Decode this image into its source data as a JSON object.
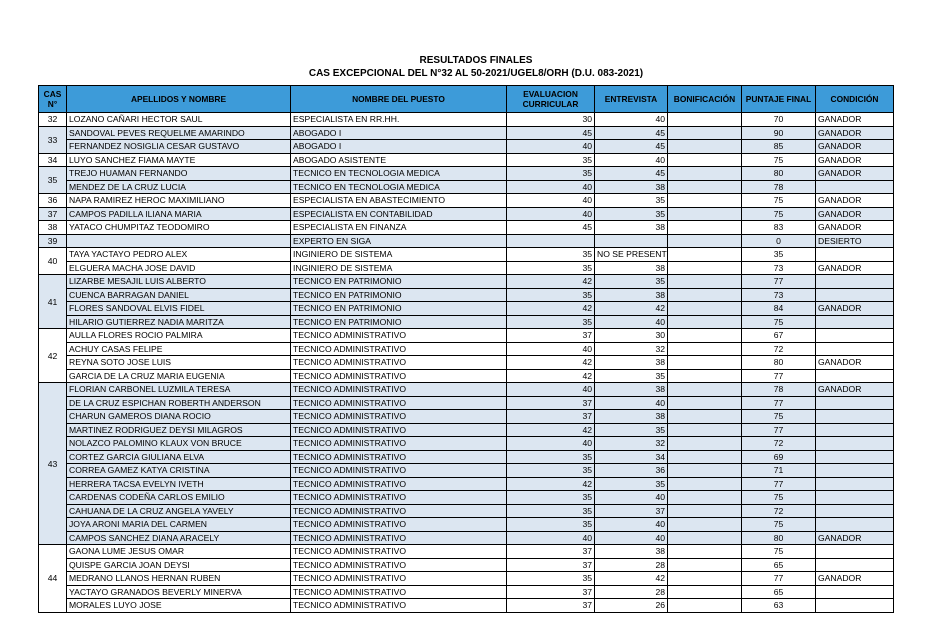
{
  "header": {
    "title": "RESULTADOS FINALES",
    "subtitle": "CAS EXCEPCIONAL DEL N°32 AL 50-2021/UGEL8/ORH (D.U. 083-2021)"
  },
  "table": {
    "columns": [
      "CAS N°",
      "APELLIDOS Y NOMBRE",
      "NOMBRE DEL PUESTO",
      "EVALUACION CURRICULAR",
      "ENTREVISTA",
      "BONIFICACIÓN",
      "PUNTAJE FINAL",
      "CONDICIÓN"
    ],
    "groups": [
      {
        "cas": 32,
        "rows": [
          [
            "LOZANO CAÑARI HECTOR SAUL",
            "ESPECIALISTA EN RR.HH.",
            30,
            40,
            null,
            70,
            "GANADOR"
          ]
        ]
      },
      {
        "cas": 33,
        "rows": [
          [
            "SANDOVAL PEVES REQUELME AMARINDO",
            "ABOGADO I",
            45,
            45,
            null,
            90,
            "GANADOR"
          ],
          [
            "FERNANDEZ NOSIGLIA CESAR GUSTAVO",
            "ABOGADO I",
            40,
            45,
            null,
            85,
            "GANADOR"
          ]
        ]
      },
      {
        "cas": 34,
        "rows": [
          [
            "LUYO SANCHEZ FIAMA MAYTE",
            "ABOGADO ASISTENTE",
            35,
            40,
            null,
            75,
            "GANADOR"
          ]
        ]
      },
      {
        "cas": 35,
        "rows": [
          [
            "TREJO HUAMAN FERNANDO",
            "TECNICO EN TECNOLOGIA MEDICA",
            35,
            45,
            null,
            80,
            "GANADOR"
          ],
          [
            "MENDEZ DE LA CRUZ LUCIA",
            "TECNICO EN TECNOLOGIA MEDICA",
            40,
            38,
            null,
            78,
            null
          ]
        ]
      },
      {
        "cas": 36,
        "rows": [
          [
            "NAPA RAMIREZ HEROC MAXIMILIANO",
            "ESPECIALISTA EN ABASTECIMIENTO",
            40,
            35,
            null,
            75,
            "GANADOR"
          ]
        ]
      },
      {
        "cas": 37,
        "rows": [
          [
            "CAMPOS PADILLA ILIANA MARIA",
            "ESPECIALISTA EN CONTABILIDAD",
            40,
            35,
            null,
            75,
            "GANADOR"
          ]
        ]
      },
      {
        "cas": 38,
        "rows": [
          [
            "YATACO CHUMPITAZ TEODOMIRO",
            "ESPECIALISTA EN FINANZA",
            45,
            38,
            null,
            83,
            "GANADOR"
          ]
        ]
      },
      {
        "cas": 39,
        "rows": [
          [
            null,
            "EXPERTO EN SIGA",
            null,
            null,
            null,
            0,
            "DESIERTO"
          ]
        ]
      },
      {
        "cas": 40,
        "rows": [
          [
            "TAYA YACTAYO PEDRO ALEX",
            "INGINIERO DE SISTEMA",
            35,
            "NO SE PRESENTO",
            null,
            35,
            null
          ],
          [
            "ELGUERA MACHA JOSE DAVID",
            "INGINIERO DE SISTEMA",
            35,
            38,
            null,
            73,
            "GANADOR"
          ]
        ]
      },
      {
        "cas": 41,
        "rows": [
          [
            "LIZARBE MESAJIL LUIS ALBERTO",
            "TECNICO EN PATRIMONIO",
            42,
            35,
            null,
            77,
            null
          ],
          [
            "CUENCA BARRAGAN DANIEL",
            "TECNICO EN PATRIMONIO",
            35,
            38,
            null,
            73,
            null
          ],
          [
            "FLORES SANDOVAL ELVIS FIDEL",
            "TECNICO EN PATRIMONIO",
            42,
            42,
            null,
            84,
            "GANADOR"
          ],
          [
            "HILARIO GUTIERREZ NADIA MARITZA",
            "TECNICO EN PATRIMONIO",
            35,
            40,
            null,
            75,
            null
          ]
        ]
      },
      {
        "cas": 42,
        "rows": [
          [
            "AULLA FLORES ROCIO PALMIRA",
            "TECNICO ADMINISTRATIVO",
            37,
            30,
            null,
            67,
            null
          ],
          [
            "ACHUY CASAS FELIPE",
            "TECNICO ADMINISTRATIVO",
            40,
            32,
            null,
            72,
            null
          ],
          [
            "REYNA SOTO JOSE LUIS",
            "TECNICO ADMINISTRATIVO",
            42,
            38,
            null,
            80,
            "GANADOR"
          ],
          [
            "GARCIA DE LA CRUZ MARIA EUGENIA",
            "TECNICO ADMINISTRATIVO",
            42,
            35,
            null,
            77,
            null
          ]
        ]
      },
      {
        "cas": 43,
        "rows": [
          [
            "FLORIAN CARBONEL LUZMILA TERESA",
            "TECNICO ADMINISTRATIVO",
            40,
            38,
            null,
            78,
            "GANADOR"
          ],
          [
            "DE LA CRUZ ESPICHAN ROBERTH ANDERSON",
            "TECNICO ADMINISTRATIVO",
            37,
            40,
            null,
            77,
            null
          ],
          [
            "CHARUN GAMEROS DIANA ROCIO",
            "TECNICO ADMINISTRATIVO",
            37,
            38,
            null,
            75,
            null
          ],
          [
            "MARTINEZ RODRIGUEZ DEYSI MILAGROS",
            "TECNICO ADMINISTRATIVO",
            42,
            35,
            null,
            77,
            null
          ],
          [
            "NOLAZCO PALOMINO KLAUX VON BRUCE",
            "TECNICO ADMINISTRATIVO",
            40,
            32,
            null,
            72,
            null
          ],
          [
            "CORTEZ GARCIA GIULIANA ELVA",
            "TECNICO ADMINISTRATIVO",
            35,
            34,
            null,
            69,
            null
          ],
          [
            "CORREA GAMEZ KATYA CRISTINA",
            "TECNICO ADMINISTRATIVO",
            35,
            36,
            null,
            71,
            null
          ],
          [
            "HERRERA TACSA EVELYN IVETH",
            "TECNICO ADMINISTRATIVO",
            42,
            35,
            null,
            77,
            null
          ],
          [
            "CARDENAS CODEÑA CARLOS EMILIO",
            "TECNICO ADMINISTRATIVO",
            35,
            40,
            null,
            75,
            null
          ],
          [
            "CAHUANA DE LA CRUZ ANGELA YAVELY",
            "TECNICO ADMINISTRATIVO",
            35,
            37,
            null,
            72,
            null
          ],
          [
            "JOYA ARONI MARIA DEL CARMEN",
            "TECNICO ADMINISTRATIVO",
            35,
            40,
            null,
            75,
            null
          ],
          [
            "CAMPOS SANCHEZ DIANA ARACELY",
            "TECNICO ADMINISTRATIVO",
            40,
            40,
            null,
            80,
            "GANADOR"
          ]
        ]
      },
      {
        "cas": 44,
        "rows": [
          [
            "GAONA LUME JESUS OMAR",
            "TECNICO ADMINISTRATIVO",
            37,
            38,
            null,
            75,
            null
          ],
          [
            "QUISPE GARCIA JOAN DEYSI",
            "TECNICO ADMINISTRATIVO",
            37,
            28,
            null,
            65,
            null
          ],
          [
            "MEDRANO LLANOS HERNAN RUBEN",
            "TECNICO ADMINISTRATIVO",
            35,
            42,
            null,
            77,
            "GANADOR"
          ],
          [
            "YACTAYO GRANADOS BEVERLY MINERVA",
            "TECNICO ADMINISTRATIVO",
            37,
            28,
            null,
            65,
            null
          ],
          [
            "MORALES LUYO JOSE",
            "TECNICO ADMINISTRATIVO",
            37,
            26,
            null,
            63,
            null
          ]
        ]
      }
    ]
  }
}
